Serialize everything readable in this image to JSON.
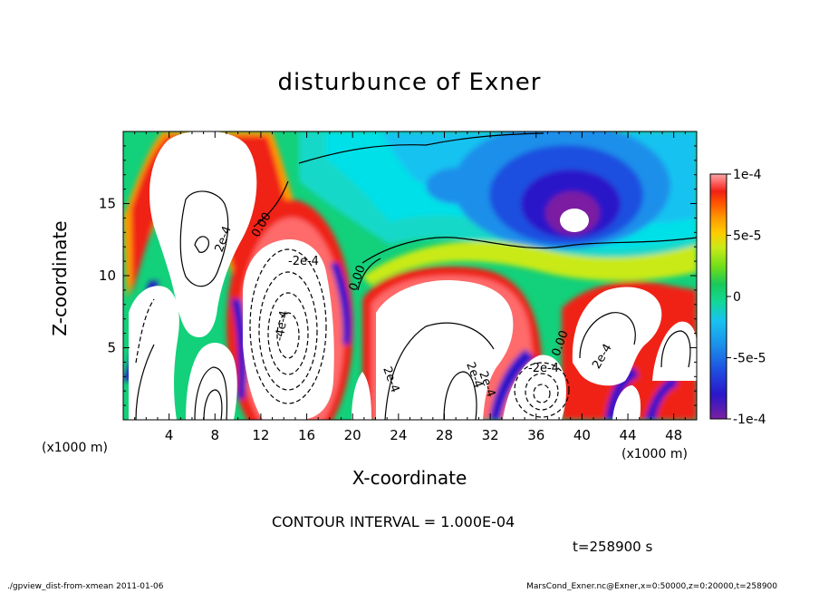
{
  "title": "disturbunce of Exner",
  "contour_interval": "CONTOUR INTERVAL = 1.000E-04",
  "time_label": "t=258900  s",
  "footer_left": "./gpview_dist-from-xmean  2011-01-06",
  "footer_right": "MarsCond_Exner.nc@Exner,x=0:50000,z=0:20000,t=258900",
  "chart_data": {
    "type": "heatmap",
    "title": "disturbunce of Exner",
    "xlabel": "X-coordinate",
    "ylabel": "Z-coordinate",
    "x_unit": "(x1000 m)",
    "y_unit": "(x1000 m)",
    "xlim": [
      0,
      50
    ],
    "ylim": [
      0,
      20
    ],
    "x_ticks": [
      4,
      8,
      12,
      16,
      20,
      24,
      28,
      32,
      36,
      40,
      44,
      48
    ],
    "y_ticks": [
      5,
      10,
      15
    ],
    "colorbar": {
      "range": [
        -0.0001,
        0.0001
      ],
      "tick_values": [
        0.0001,
        5e-05,
        0,
        -5e-05,
        -0.0001
      ],
      "tick_labels": [
        "1e-4",
        "5e-5",
        "0",
        "-5e-5",
        "-1e-4"
      ],
      "colors": [
        "#7b1fa2",
        "#2a17c9",
        "#1f4fe0",
        "#1b8fea",
        "#19c2f0",
        "#00e0e8",
        "#12d896",
        "#18c95a",
        "#6ede1a",
        "#c9ea18",
        "#ffcc00",
        "#ff9a00",
        "#ff5500",
        "#f02015",
        "#ff6b6b",
        "#f6a8a8"
      ]
    },
    "contour_labels": [
      "0.00",
      "0.00",
      "0.00",
      "2e-4",
      "2e-4",
      "2e-4",
      "-2e-4",
      "-4e-4",
      "-2e-4",
      "2e-4",
      "2e-4"
    ],
    "contour_interval": 0.0001,
    "time_s": 258900
  }
}
